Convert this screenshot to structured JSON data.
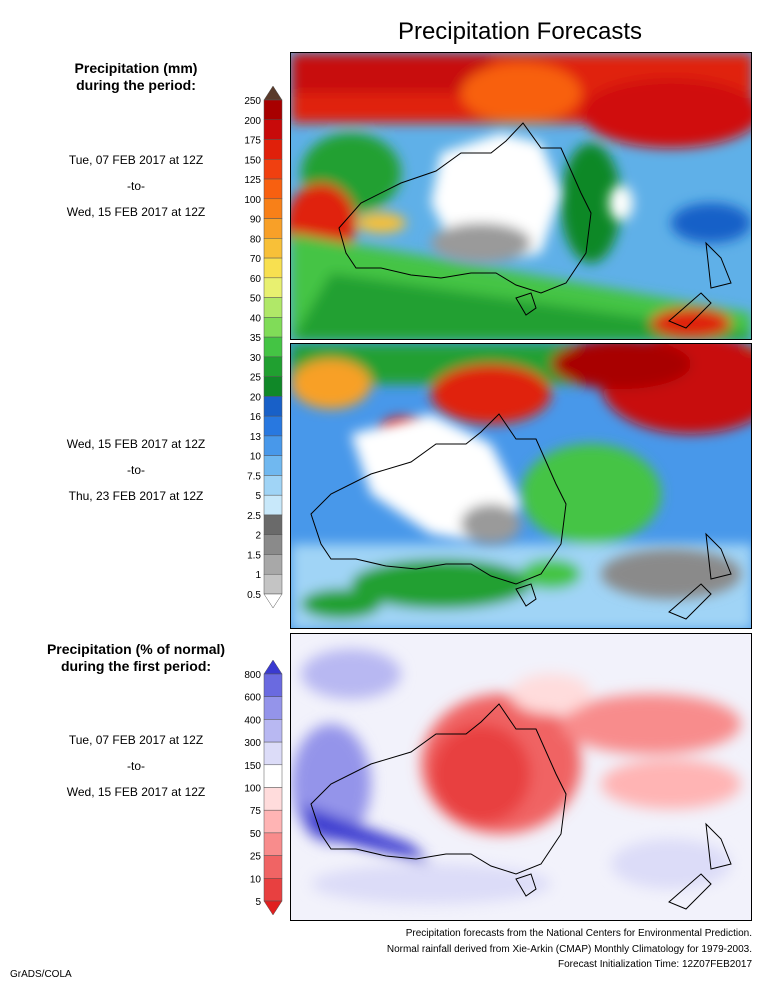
{
  "title": "Precipitation Forecasts",
  "panel1": {
    "heading_line1": "Precipitation (mm)",
    "heading_line2": "during the period:",
    "start": "Tue, 07 FEB 2017 at 12Z",
    "to": "-to-",
    "end": "Wed, 15 FEB 2017 at 12Z"
  },
  "panel2": {
    "start": "Wed, 15 FEB 2017 at 12Z",
    "to": "-to-",
    "end": "Thu, 23 FEB 2017 at 12Z"
  },
  "panel3": {
    "heading_line1": "Precipitation (% of normal)",
    "heading_line2": "during the first period:",
    "start": "Tue, 07 FEB 2017 at 12Z",
    "to": "-to-",
    "end": "Wed, 15 FEB 2017 at 12Z"
  },
  "legend_mm": {
    "labels": [
      "250",
      "200",
      "175",
      "150",
      "125",
      "100",
      "90",
      "80",
      "70",
      "60",
      "50",
      "40",
      "35",
      "30",
      "25",
      "20",
      "16",
      "13",
      "10",
      "7.5",
      "5",
      "2.5",
      "2",
      "1.5",
      "1",
      "0.5"
    ],
    "colors": [
      "#8a2a14",
      "#a80000",
      "#c80a0a",
      "#e0200a",
      "#f04010",
      "#f86010",
      "#f88018",
      "#f8a028",
      "#f8c038",
      "#f8e050",
      "#e8f070",
      "#b0e868",
      "#80dc58",
      "#44c444",
      "#20a030",
      "#108828",
      "#1860c8",
      "#2878e0",
      "#4898ea",
      "#70b8f0",
      "#a0d4f6",
      "#c8e8fa",
      "#6a6a6a",
      "#8a8a8a",
      "#a8a8a8",
      "#c4c4c4",
      "#ffffff"
    ],
    "top_arrow_color": "#5a3a2a"
  },
  "legend_pct": {
    "labels": [
      "800",
      "600",
      "400",
      "300",
      "150",
      "100",
      "75",
      "50",
      "25",
      "10",
      "5"
    ],
    "colors": [
      "#3a3ad0",
      "#6a6ae0",
      "#9494ea",
      "#b8b8f2",
      "#dcdcf8",
      "#ffffff",
      "#ffdcdc",
      "#ffb4b4",
      "#f88c8c",
      "#f06464",
      "#e84040",
      "#e02020"
    ]
  },
  "footer": {
    "line1": "Precipitation forecasts from the National Centers for Environmental Prediction.",
    "line2": "Normal rainfall derived from Xie-Arkin (CMAP) Monthly Climatology for 1979-2003.",
    "line3": "Forecast Initialization Time: 12Z07FEB2017"
  },
  "credit": "GrADS/COLA"
}
